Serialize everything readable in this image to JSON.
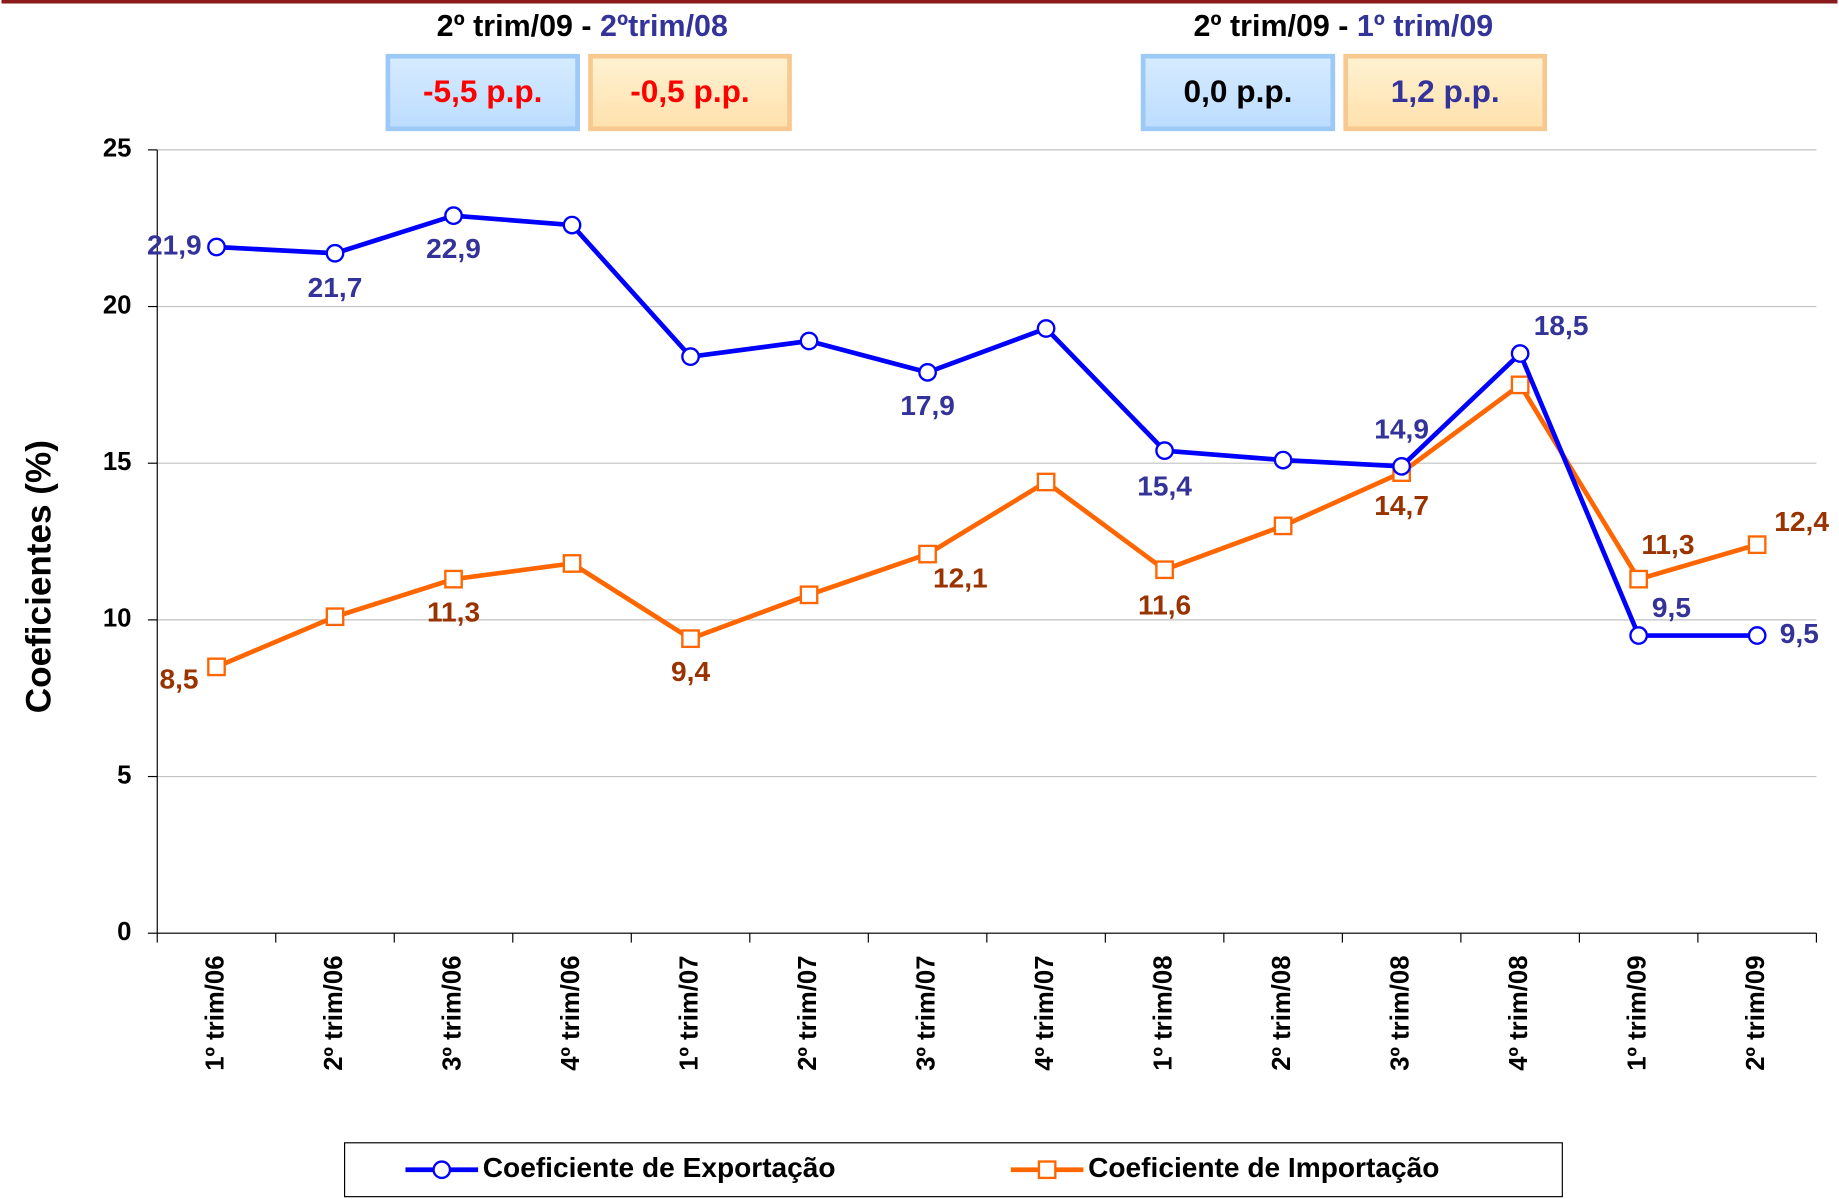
{
  "chart_data": {
    "type": "line",
    "y_label": "Coeficientes (%)",
    "categories": [
      "1º trim/06",
      "2º trim/06",
      "3º trim/06",
      "4º trim/06",
      "1º trim/07",
      "2º trim/07",
      "3º trim/07",
      "4º trim/07",
      "1º trim/08",
      "2º trim/08",
      "3º trim/08",
      "4º trim/08",
      "1º trim/09",
      "2º trim/09"
    ],
    "series": [
      {
        "name": "Coeficiente de Exportação",
        "color": "#0000ff",
        "label_color": "#333399",
        "marker": "circle",
        "values": [
          21.9,
          21.7,
          22.9,
          22.6,
          18.4,
          18.9,
          17.9,
          19.3,
          15.4,
          15.1,
          14.9,
          18.5,
          9.5,
          9.5
        ],
        "value_labels": [
          "21,9",
          "21,7",
          "22,9",
          null,
          null,
          null,
          "17,9",
          null,
          "15,4",
          null,
          "14,9",
          "18,5",
          "9,5",
          "9,5"
        ]
      },
      {
        "name": "Coeficiente de Importação",
        "color": "#ff6600",
        "label_color": "#993300",
        "marker": "square",
        "values": [
          8.5,
          10.1,
          11.3,
          11.8,
          9.4,
          10.8,
          12.1,
          14.4,
          11.6,
          13.0,
          14.7,
          17.5,
          11.3,
          12.4
        ],
        "value_labels": [
          "8,5",
          null,
          "11,3",
          null,
          "9,4",
          null,
          "12,1",
          null,
          "11,6",
          null,
          "14,7",
          null,
          "11,3",
          "12,4"
        ]
      }
    ],
    "ylim": [
      0,
      25
    ],
    "yticks": [
      0,
      5,
      10,
      15,
      20,
      25
    ],
    "grid": true,
    "legend": "bottom",
    "comparisons": [
      {
        "label": "2º trim/09 - ",
        "reference": "2ºtrim/08",
        "boxes": [
          {
            "text": "-5,5 p.p.",
            "color": "#ff0000"
          },
          {
            "text": "-0,5 p.p.",
            "color": "#ff0000"
          }
        ]
      },
      {
        "label": "2º trim/09 - ",
        "reference": "1º trim/09",
        "boxes": [
          {
            "text": "0,0 p.p.",
            "color": "#000000"
          },
          {
            "text": "1,2 p.p.",
            "color": "#333399"
          }
        ]
      }
    ]
  }
}
